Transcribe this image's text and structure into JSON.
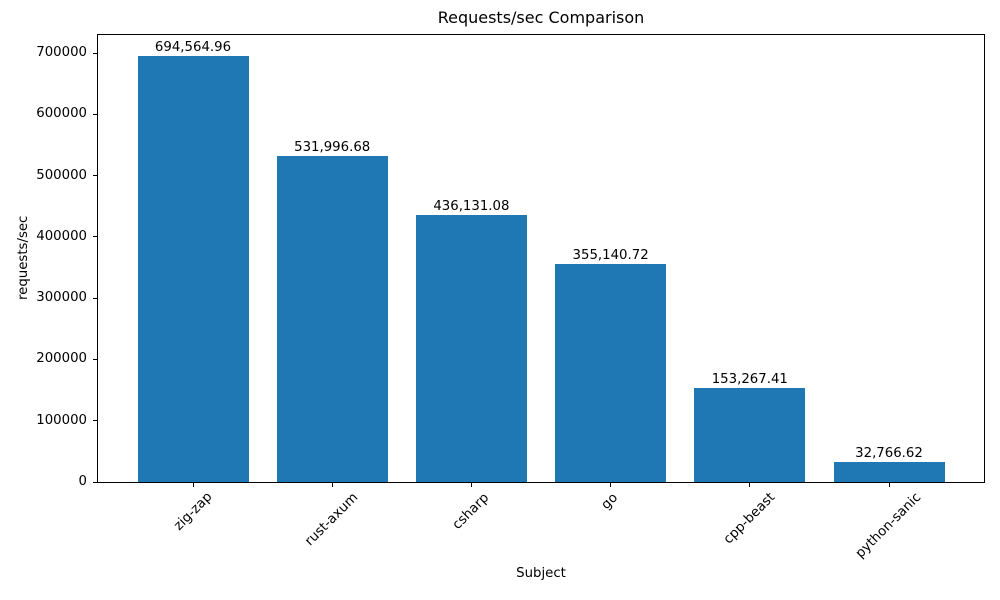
{
  "chart_data": {
    "type": "bar",
    "title": "Requests/sec Comparison",
    "xlabel": "Subject",
    "ylabel": "requests/sec",
    "categories": [
      "zig-zap",
      "rust-axum",
      "csharp",
      "go",
      "cpp-beast",
      "python-sanic"
    ],
    "values": [
      694564.96,
      531996.68,
      436131.08,
      355140.72,
      153267.41,
      32766.62
    ],
    "value_labels": [
      "694,564.96",
      "531,996.68",
      "436,131.08",
      "355,140.72",
      "153,267.41",
      "32,766.62"
    ],
    "yticks": [
      0,
      100000,
      200000,
      300000,
      400000,
      500000,
      600000,
      700000
    ],
    "ylim": [
      0,
      729293
    ],
    "bar_color": "#1f77b4",
    "text_color": "#000000",
    "grid": false,
    "legend": null,
    "x_tick_rotation_deg": 45
  }
}
